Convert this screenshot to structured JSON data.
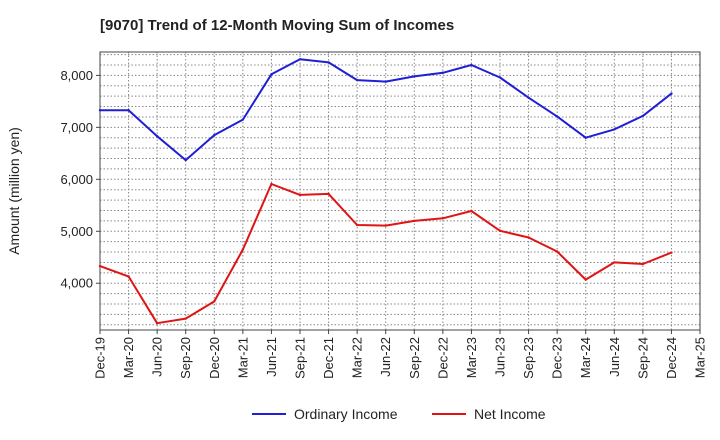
{
  "chart_data": {
    "type": "line",
    "title": "[9070]  Trend of 12-Month Moving Sum of Incomes",
    "xlabel": "",
    "ylabel": "Amount (million yen)",
    "ylim": [
      3100,
      8450
    ],
    "yticks": [
      4000,
      5000,
      6000,
      7000,
      8000
    ],
    "ytick_labels": [
      "4,000",
      "5,000",
      "6,000",
      "7,000",
      "8,000"
    ],
    "grid": true,
    "legend_position": "bottom-center",
    "categories": [
      "Dec-19",
      "Mar-20",
      "Jun-20",
      "Sep-20",
      "Dec-20",
      "Mar-21",
      "Jun-21",
      "Sep-21",
      "Dec-21",
      "Mar-22",
      "Jun-22",
      "Sep-22",
      "Dec-22",
      "Mar-23",
      "Jun-23",
      "Sep-23",
      "Dec-23",
      "Mar-24",
      "Jun-24",
      "Sep-24",
      "Dec-24",
      "Mar-25"
    ],
    "series": [
      {
        "name": "Ordinary Income",
        "color": "#1f1fd6",
        "values": [
          7330,
          7330,
          6830,
          6370,
          6850,
          7150,
          8020,
          8310,
          8250,
          7910,
          7880,
          7980,
          8050,
          8200,
          7960,
          7570,
          7210,
          6800,
          6960,
          7220,
          7650,
          null
        ]
      },
      {
        "name": "Net Income",
        "color": "#e01414",
        "values": [
          4330,
          4130,
          3230,
          3320,
          3650,
          4650,
          5910,
          5700,
          5720,
          5120,
          5110,
          5200,
          5250,
          5390,
          5010,
          4880,
          4610,
          4070,
          4400,
          4370,
          4590,
          null
        ]
      }
    ]
  }
}
